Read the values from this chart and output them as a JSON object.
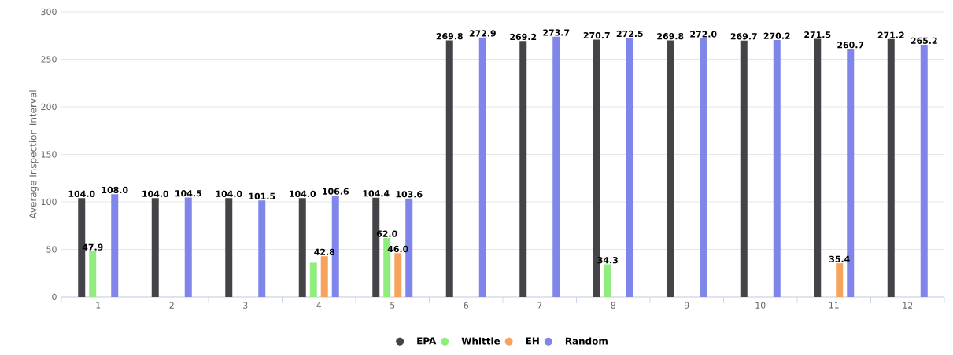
{
  "chart_data": {
    "type": "bar",
    "ylabel": "Average Inspection Interval",
    "categories": [
      "1",
      "2",
      "3",
      "4",
      "5",
      "6",
      "7",
      "8",
      "9",
      "10",
      "11",
      "12"
    ],
    "series": [
      {
        "name": "EPA",
        "color": "#434348",
        "values": [
          104.0,
          104.0,
          104.0,
          104.0,
          104.4,
          269.8,
          269.2,
          270.7,
          269.8,
          269.7,
          271.5,
          271.2
        ],
        "value_labels": [
          "104.0",
          "104.0",
          "104.0",
          "104.0",
          "104.4",
          "269.8",
          "269.2",
          "270.7",
          "269.8",
          "269.7",
          "271.5",
          "271.2"
        ]
      },
      {
        "name": "Whittle",
        "color": "#90ed7d",
        "values": [
          47.9,
          null,
          null,
          36,
          62.0,
          null,
          null,
          34.3,
          null,
          null,
          null,
          null
        ],
        "value_labels": [
          "47.9",
          null,
          null,
          null,
          "62.0",
          null,
          null,
          "34.3",
          null,
          null,
          null,
          null
        ]
      },
      {
        "name": "EH",
        "color": "#f7a35c",
        "values": [
          null,
          null,
          null,
          42.8,
          46.0,
          null,
          null,
          null,
          null,
          null,
          35.4,
          null
        ],
        "value_labels": [
          null,
          null,
          null,
          "42.8",
          "46.0",
          null,
          null,
          null,
          null,
          null,
          "35.4",
          null
        ]
      },
      {
        "name": "Random",
        "color": "#8085e9",
        "values": [
          108.0,
          104.5,
          101.5,
          106.6,
          103.6,
          272.9,
          273.7,
          272.5,
          272.0,
          270.2,
          260.7,
          265.2
        ],
        "value_labels": [
          "108.0",
          "104.5",
          "101.5",
          "106.6",
          "103.6",
          "272.9",
          "273.7",
          "272.5",
          "272.0",
          "270.2",
          "260.7",
          "265.2"
        ]
      }
    ],
    "ylim": [
      0,
      300
    ],
    "yticks": [
      0,
      50,
      100,
      150,
      200,
      250,
      300
    ],
    "grid": "y",
    "legend": "bottom"
  }
}
